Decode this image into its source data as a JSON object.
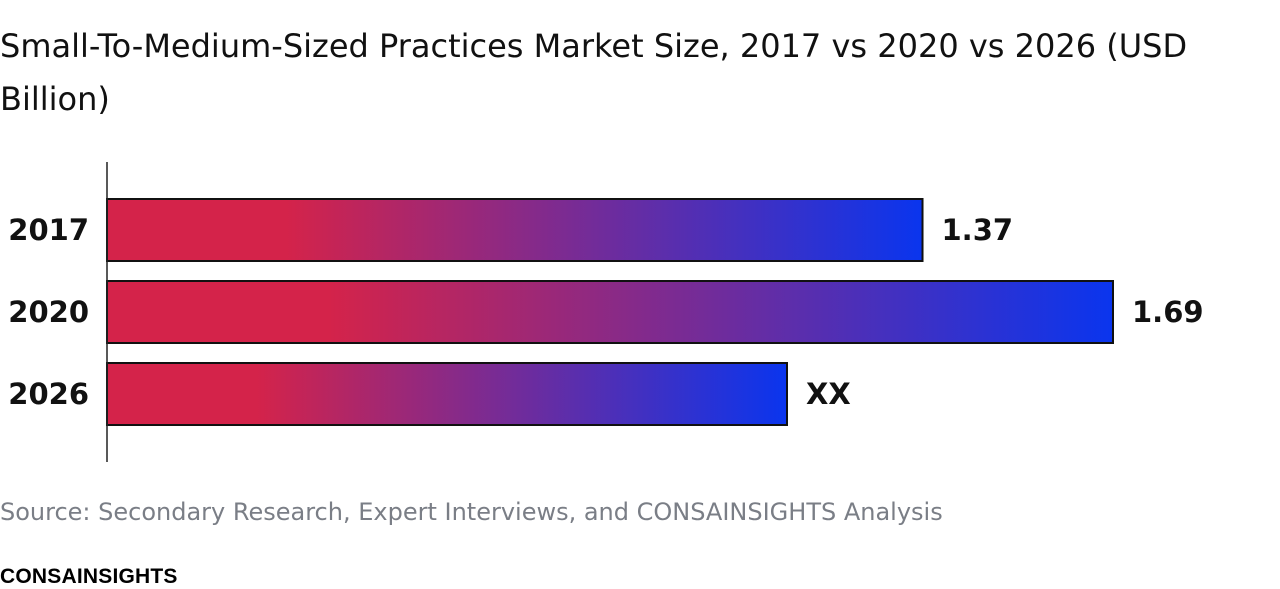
{
  "chart_data": {
    "type": "bar",
    "orientation": "horizontal",
    "title": "Small-To-Medium-Sized Practices Market Size, 2017 vs 2020 vs 2026 (USD Billion)",
    "categories": [
      "2017",
      "2020",
      "2026"
    ],
    "values": [
      1.37,
      1.69,
      null
    ],
    "data_labels": [
      "1.37",
      "1.69",
      "XX"
    ],
    "bar_gradient": [
      "#d4234a",
      "#0a35ee"
    ],
    "xlim": [
      0,
      1.69
    ]
  },
  "source": "Source: Secondary Research, Expert Interviews, and CONSAINSIGHTS Analysis",
  "brand": "CONSAINSIGHTS"
}
